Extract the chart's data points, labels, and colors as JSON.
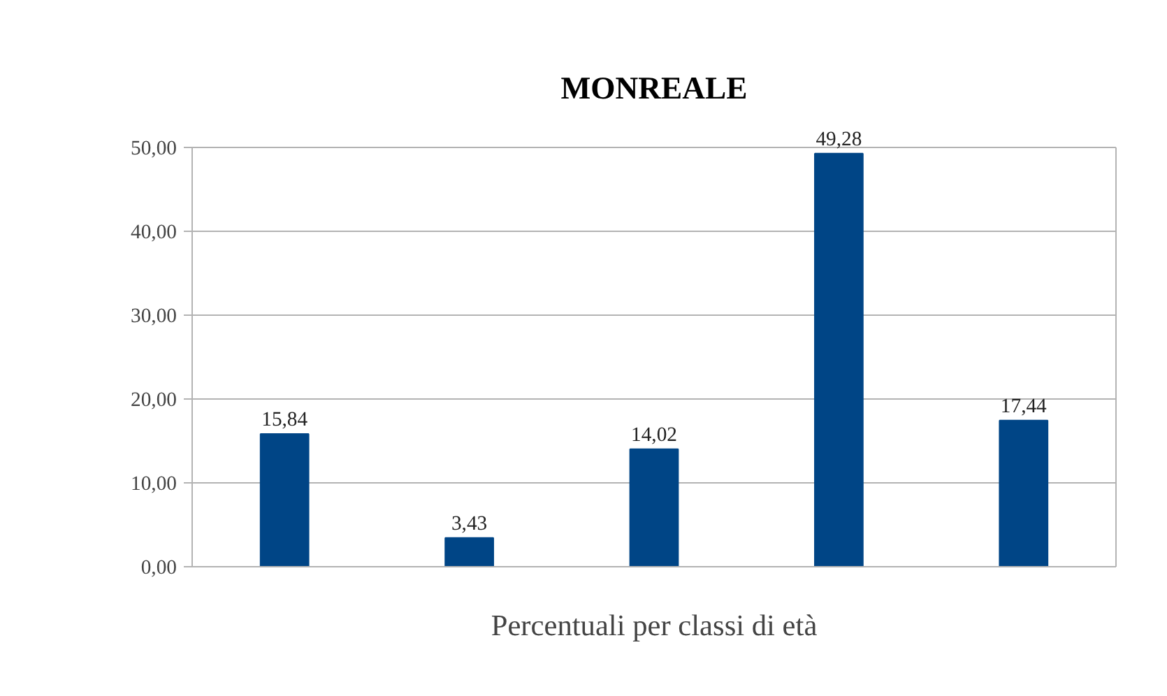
{
  "chart_data": {
    "type": "bar",
    "title": "MONREALE",
    "xlabel": "Percentuali per classi di età",
    "categories": [
      null,
      null,
      null,
      null,
      null
    ],
    "values": [
      15.84,
      3.43,
      14.02,
      49.28,
      17.44
    ],
    "value_labels": [
      "15,84",
      "3,43",
      "14,02",
      "49,28",
      "17,44"
    ],
    "color": "#004586",
    "ylim": [
      0,
      50
    ],
    "yticks": [
      {
        "value": 0,
        "label": "0,00"
      },
      {
        "value": 10,
        "label": "10,00"
      },
      {
        "value": 20,
        "label": "20,00"
      },
      {
        "value": 30,
        "label": "30,00"
      },
      {
        "value": 40,
        "label": "40,00"
      },
      {
        "value": 50,
        "label": "50,00"
      }
    ],
    "grid": "y",
    "legend": false
  }
}
